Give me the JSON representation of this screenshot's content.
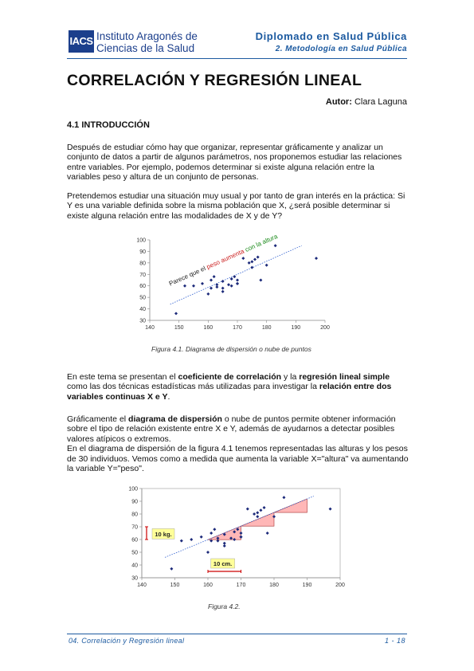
{
  "header": {
    "logo_short": "IACS",
    "logo_line1": "Instituto Aragonés de",
    "logo_line2": "Ciencias de la Salud",
    "title": "Diplomado en Salud Pública",
    "subtitle": "2. Metodología en Salud Pública"
  },
  "document": {
    "title": "CORRELACIÓN Y REGRESIÓN LINEAL",
    "author_label": "Autor:",
    "author_name": "Clara Laguna",
    "section_heading": "4.1 INTRODUCCIÓN",
    "p1": "Después de estudiar cómo hay que organizar, representar gráficamente y analizar un conjunto de datos a partir de algunos parámetros, nos proponemos estudiar las relaciones entre variables. Por ejemplo, podemos determinar si existe alguna relación entre la variables peso y altura de un conjunto de personas.",
    "p2": "Pretendemos estudiar una situación muy usual y por tanto de gran interés en la práctica: Si Y es una variable definida sobre la misma población que X, ¿será posible determinar si existe alguna relación entre las modalidades de X y de Y?",
    "p3_a": "En este tema se presentan el ",
    "p3_b": "coeficiente de correlación",
    "p3_c": " y la ",
    "p3_d": "regresión lineal simple",
    "p3_e": " como las dos técnicas estadísticas más utilizadas para investigar la ",
    "p3_f": "relación entre dos variables continuas X e Y",
    "p3_g": ".",
    "p4_a": "Gráficamente el ",
    "p4_b": "diagrama de dispersión",
    "p4_c": " o nube de puntos permite obtener información sobre el tipo de relación existente entre X e Y, además de ayudarnos a detectar posibles valores atípicos o extremos.",
    "p5": "En el diagrama de dispersión de la figura 4.1 tenemos representadas las alturas y los pesos de 30 individuos. Vemos como a medida que aumenta la variable X=\"altura\" va aumentando la variable Y=\"peso\".",
    "caption1": "Figura 4.1. Diagrama de dispersión o nube de puntos",
    "caption2": "Figura 4.2."
  },
  "footer": {
    "left": "04. Correlación y Regresión lineal",
    "right": "1 - 18"
  },
  "chart_data": [
    {
      "type": "scatter",
      "title": "",
      "xlabel": "",
      "ylabel": "",
      "xlim": [
        140,
        200
      ],
      "ylim": [
        30,
        100
      ],
      "xticks": [
        140,
        150,
        160,
        170,
        180,
        190,
        200
      ],
      "yticks": [
        30,
        40,
        50,
        60,
        70,
        80,
        90,
        100
      ],
      "annotation": {
        "part1": "Parece que el ",
        "part2": "peso aumenta",
        "part3": " con la altura",
        "color1": "#222222",
        "color2": "#cc2222",
        "color3": "#1a8a1a"
      },
      "trend": {
        "x": [
          147,
          192
        ],
        "y": [
          44,
          95
        ]
      },
      "x": [
        149,
        152,
        155,
        158,
        160,
        161,
        161,
        162,
        163,
        163,
        165,
        165,
        165,
        167,
        168,
        168,
        169,
        170,
        170,
        170,
        172,
        174,
        175,
        175,
        176,
        177,
        178,
        180,
        183,
        197
      ],
      "y": [
        36,
        60,
        60,
        62,
        53,
        58,
        65,
        68,
        61,
        59,
        55,
        58,
        64,
        61,
        60,
        66,
        68,
        62,
        65,
        62,
        84,
        80,
        81,
        76,
        83,
        85,
        65,
        78,
        95,
        84
      ],
      "point_color": "#1c2a7a",
      "trend_color": "#3060d0"
    },
    {
      "type": "scatter",
      "title": "",
      "xlabel": "",
      "ylabel": "",
      "xlim": [
        140,
        200
      ],
      "ylim": [
        30,
        100
      ],
      "xticks": [
        140,
        150,
        160,
        170,
        180,
        190,
        200
      ],
      "yticks": [
        30,
        40,
        50,
        60,
        70,
        80,
        90,
        100
      ],
      "trend": {
        "x": [
          147,
          192
        ],
        "y": [
          46,
          94
        ]
      },
      "x": [
        149,
        152,
        155,
        158,
        160,
        161,
        161,
        162,
        163,
        163,
        165,
        165,
        165,
        167,
        168,
        168,
        169,
        170,
        170,
        170,
        172,
        174,
        175,
        175,
        176,
        177,
        178,
        180,
        183,
        197
      ],
      "y": [
        37,
        59,
        60,
        62,
        50,
        59,
        65,
        68,
        61,
        59,
        55,
        57,
        64,
        61,
        60,
        66,
        68,
        62,
        65,
        62,
        84,
        80,
        81,
        78,
        83,
        85,
        65,
        78,
        93,
        84
      ],
      "point_color": "#1c2a7a",
      "trend_color": "#3060d0",
      "labels": {
        "vertical": "10 kg.",
        "horizontal": "10 cm."
      },
      "highlight_color": "#ff9999",
      "label_bg": "#ffff99"
    }
  ]
}
